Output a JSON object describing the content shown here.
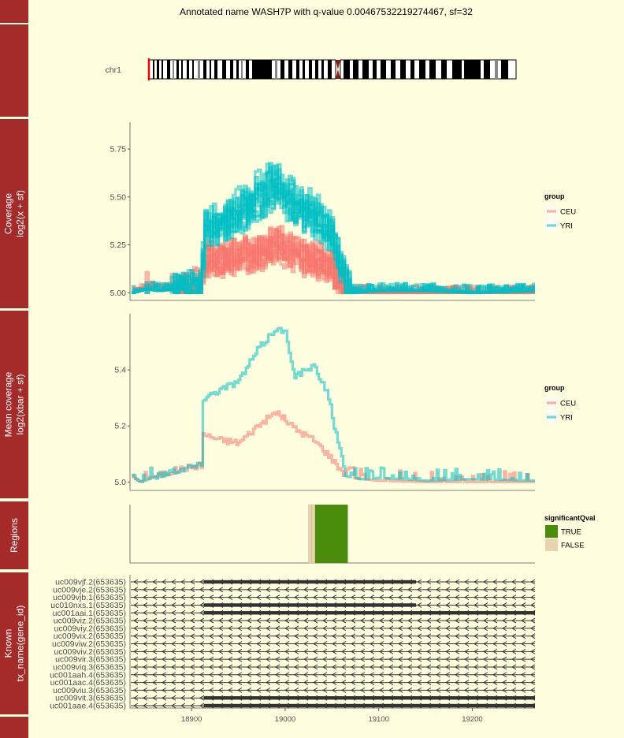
{
  "title": "Annotated name WASH7P with q-value 0.00467532219274467, sf=32",
  "colors": {
    "background": "#ffffe0",
    "strip": "#a52a2a",
    "ceu": "#f8766d",
    "yri": "#00bfc4",
    "true": "#4a8c0c",
    "false": "#e8d5b0"
  },
  "ideogram": {
    "chromosome": "chr1"
  },
  "strips": {
    "coverage": [
      "Coverage",
      "log2(x + sf)"
    ],
    "mean": [
      "Mean coverage",
      "log2(xbar + sf)"
    ],
    "regions": [
      "Regions"
    ],
    "known": [
      "Known",
      "tx_name(gene_id)"
    ]
  },
  "legends": {
    "group_title": "group",
    "groups": [
      "CEU",
      "YRI"
    ],
    "qval_title": "significantQval",
    "qval_levels": [
      "TRUE",
      "FALSE"
    ]
  },
  "x_ticks": [
    "18900",
    "19000",
    "19100",
    "19200"
  ],
  "chart_data": [
    {
      "type": "line",
      "panel": "coverage",
      "y_ticks": [
        "5.75",
        "5.50",
        "5.25",
        "5.00"
      ],
      "xlim": [
        18835,
        19267
      ],
      "ylim": [
        4.96,
        5.89
      ],
      "series": [
        {
          "name": "CEU",
          "samples": 11,
          "x": [
            18836,
            18850,
            18865,
            18880,
            18895,
            18910,
            18912,
            18930,
            18950,
            18970,
            18990,
            19010,
            19030,
            19050,
            19060,
            19070,
            19100,
            19150,
            19200,
            19267
          ],
          "y": [
            5.0,
            5.02,
            5.01,
            5.02,
            5.03,
            5.05,
            5.18,
            5.17,
            5.19,
            5.2,
            5.25,
            5.2,
            5.17,
            5.12,
            5.05,
            5.0,
            5.0,
            5.0,
            5.0,
            5.0
          ]
        },
        {
          "name": "YRI",
          "samples": 11,
          "x": [
            18836,
            18850,
            18865,
            18880,
            18895,
            18910,
            18912,
            18930,
            18950,
            18970,
            18990,
            19010,
            19030,
            19050,
            19060,
            19070,
            19100,
            19150,
            19200,
            19267
          ],
          "y": [
            5.0,
            5.02,
            5.01,
            5.02,
            5.03,
            5.05,
            5.32,
            5.35,
            5.42,
            5.5,
            5.55,
            5.45,
            5.4,
            5.3,
            5.1,
            5.0,
            5.01,
            5.01,
            5.0,
            5.01
          ]
        }
      ]
    },
    {
      "type": "line",
      "panel": "mean coverage",
      "y_ticks": [
        "5.4",
        "5.2",
        "5.0"
      ],
      "xlim": [
        18835,
        19267
      ],
      "ylim": [
        4.97,
        5.6
      ],
      "series": [
        {
          "name": "CEU",
          "x": [
            18836,
            18845,
            18860,
            18880,
            18900,
            18910,
            18912,
            18930,
            18950,
            18970,
            18990,
            19000,
            19010,
            19030,
            19045,
            19055,
            19065,
            19080,
            19100,
            19150,
            19200,
            19267
          ],
          "y": [
            5.02,
            5.0,
            5.02,
            5.04,
            5.055,
            5.06,
            5.17,
            5.15,
            5.14,
            5.2,
            5.25,
            5.22,
            5.19,
            5.15,
            5.1,
            5.06,
            5.02,
            5.01,
            5.005,
            5.0,
            5.0,
            5.0
          ]
        },
        {
          "name": "YRI",
          "x": [
            18836,
            18845,
            18860,
            18880,
            18900,
            18910,
            18912,
            18930,
            18950,
            18970,
            18990,
            19000,
            19010,
            19030,
            19045,
            19055,
            19065,
            19080,
            19100,
            19150,
            19200,
            19267
          ],
          "y": [
            5.02,
            5.0,
            5.02,
            5.04,
            5.055,
            5.06,
            5.3,
            5.33,
            5.36,
            5.47,
            5.55,
            5.53,
            5.38,
            5.41,
            5.32,
            5.15,
            5.02,
            5.01,
            5.015,
            5.005,
            5.01,
            5.005
          ]
        }
      ]
    },
    {
      "type": "bar",
      "panel": "regions",
      "regions": [
        {
          "start": 19025,
          "end": 19028,
          "significantQval": "FALSE"
        },
        {
          "start": 19028,
          "end": 19032,
          "significantQval": "FALSE"
        },
        {
          "start": 19032,
          "end": 19067,
          "significantQval": "TRUE"
        }
      ]
    },
    {
      "type": "gene_track",
      "panel": "known",
      "transcripts": [
        {
          "label": "uc009vjf.2(653635)",
          "thick_start": 18913,
          "thick_end": 19140
        },
        {
          "label": "uc009vje.2(653635)",
          "thick_start": null,
          "thick_end": null
        },
        {
          "label": "uc009vjb.1(653635)",
          "thick_start": null,
          "thick_end": null
        },
        {
          "label": "uc010nxs.1(653635)",
          "thick_start": 18913,
          "thick_end": 19140
        },
        {
          "label": "uc001aai.1(653635)",
          "thick_start": 18913,
          "thick_end": 19267
        },
        {
          "label": "uc009viz.2(653635)",
          "thick_start": null,
          "thick_end": null
        },
        {
          "label": "uc009viy.2(653635)",
          "thick_start": null,
          "thick_end": null
        },
        {
          "label": "uc009vix.2(653635)",
          "thick_start": null,
          "thick_end": null
        },
        {
          "label": "uc009viw.2(653635)",
          "thick_start": null,
          "thick_end": null
        },
        {
          "label": "uc009viv.2(653635)",
          "thick_start": null,
          "thick_end": null
        },
        {
          "label": "uc009vir.3(653635)",
          "thick_start": null,
          "thick_end": null
        },
        {
          "label": "uc009viq.3(653635)",
          "thick_start": null,
          "thick_end": null
        },
        {
          "label": "uc001aah.4(653635)",
          "thick_start": null,
          "thick_end": null
        },
        {
          "label": "uc001aac.4(653635)",
          "thick_start": null,
          "thick_end": null
        },
        {
          "label": "uc009viu.3(653635)",
          "thick_start": null,
          "thick_end": null
        },
        {
          "label": "uc009vit.3(653635)",
          "thick_start": 18913,
          "thick_end": 19267
        },
        {
          "label": "uc001aae.4(653635)",
          "thick_start": 18913,
          "thick_end": 19267
        }
      ]
    }
  ]
}
